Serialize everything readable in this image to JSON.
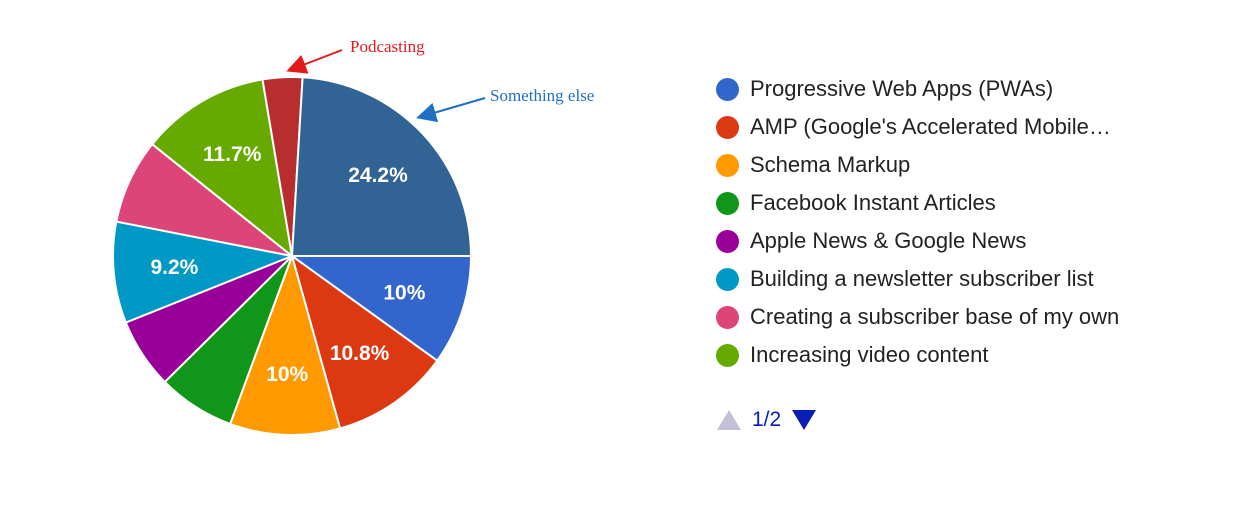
{
  "chart_data": {
    "type": "pie",
    "slices": [
      {
        "name": "Progressive Web Apps (PWAs)",
        "value": 10,
        "label": "10%",
        "color": "#3366cc"
      },
      {
        "name": "AMP (Google's Accelerated Mobile…",
        "value": 10.8,
        "label": "10.8%",
        "color": "#dc3912"
      },
      {
        "name": "Schema Markup",
        "value": 10,
        "label": "10%",
        "color": "#ff9900"
      },
      {
        "name": "Facebook Instant Articles",
        "value": 7,
        "label": "",
        "color": "#109618"
      },
      {
        "name": "Apple News & Google News",
        "value": 6.4,
        "label": "",
        "color": "#990099"
      },
      {
        "name": "Building a newsletter subscriber list",
        "value": 9.2,
        "label": "9.2%",
        "color": "#0099c6"
      },
      {
        "name": "Creating a subscriber base of my own",
        "value": 7.7,
        "label": "",
        "color": "#dd4477"
      },
      {
        "name": "Increasing video content",
        "value": 11.7,
        "label": "11.7%",
        "color": "#66aa00"
      },
      {
        "name": "Podcasting",
        "value": 3.6,
        "label": "",
        "color": "#b82e2e"
      },
      {
        "name": "Something else",
        "value": 24.2,
        "label": "24.2%",
        "color": "#316395"
      }
    ],
    "annotations": [
      {
        "text": "Podcasting",
        "target": "Podcasting",
        "color": "#e31a1c"
      },
      {
        "text": "Something else",
        "target": "Something else",
        "color": "#1f6fc5"
      }
    ],
    "legend": {
      "position": "right",
      "items": [
        {
          "label": "Progressive Web Apps (PWAs)",
          "color": "#3366cc"
        },
        {
          "label": "AMP (Google's Accelerated Mobile…",
          "color": "#dc3912"
        },
        {
          "label": "Schema Markup",
          "color": "#ff9900"
        },
        {
          "label": "Facebook Instant Articles",
          "color": "#109618"
        },
        {
          "label": "Apple News & Google News",
          "color": "#990099"
        },
        {
          "label": "Building a newsletter subscriber list",
          "color": "#0099c6"
        },
        {
          "label": "Creating a subscriber base of my own",
          "color": "#dd4477"
        },
        {
          "label": "Increasing video content",
          "color": "#66aa00"
        }
      ]
    },
    "pager": {
      "text": "1/2",
      "prev_color": "#c5bfd6",
      "next_color": "#0a1db5"
    }
  }
}
